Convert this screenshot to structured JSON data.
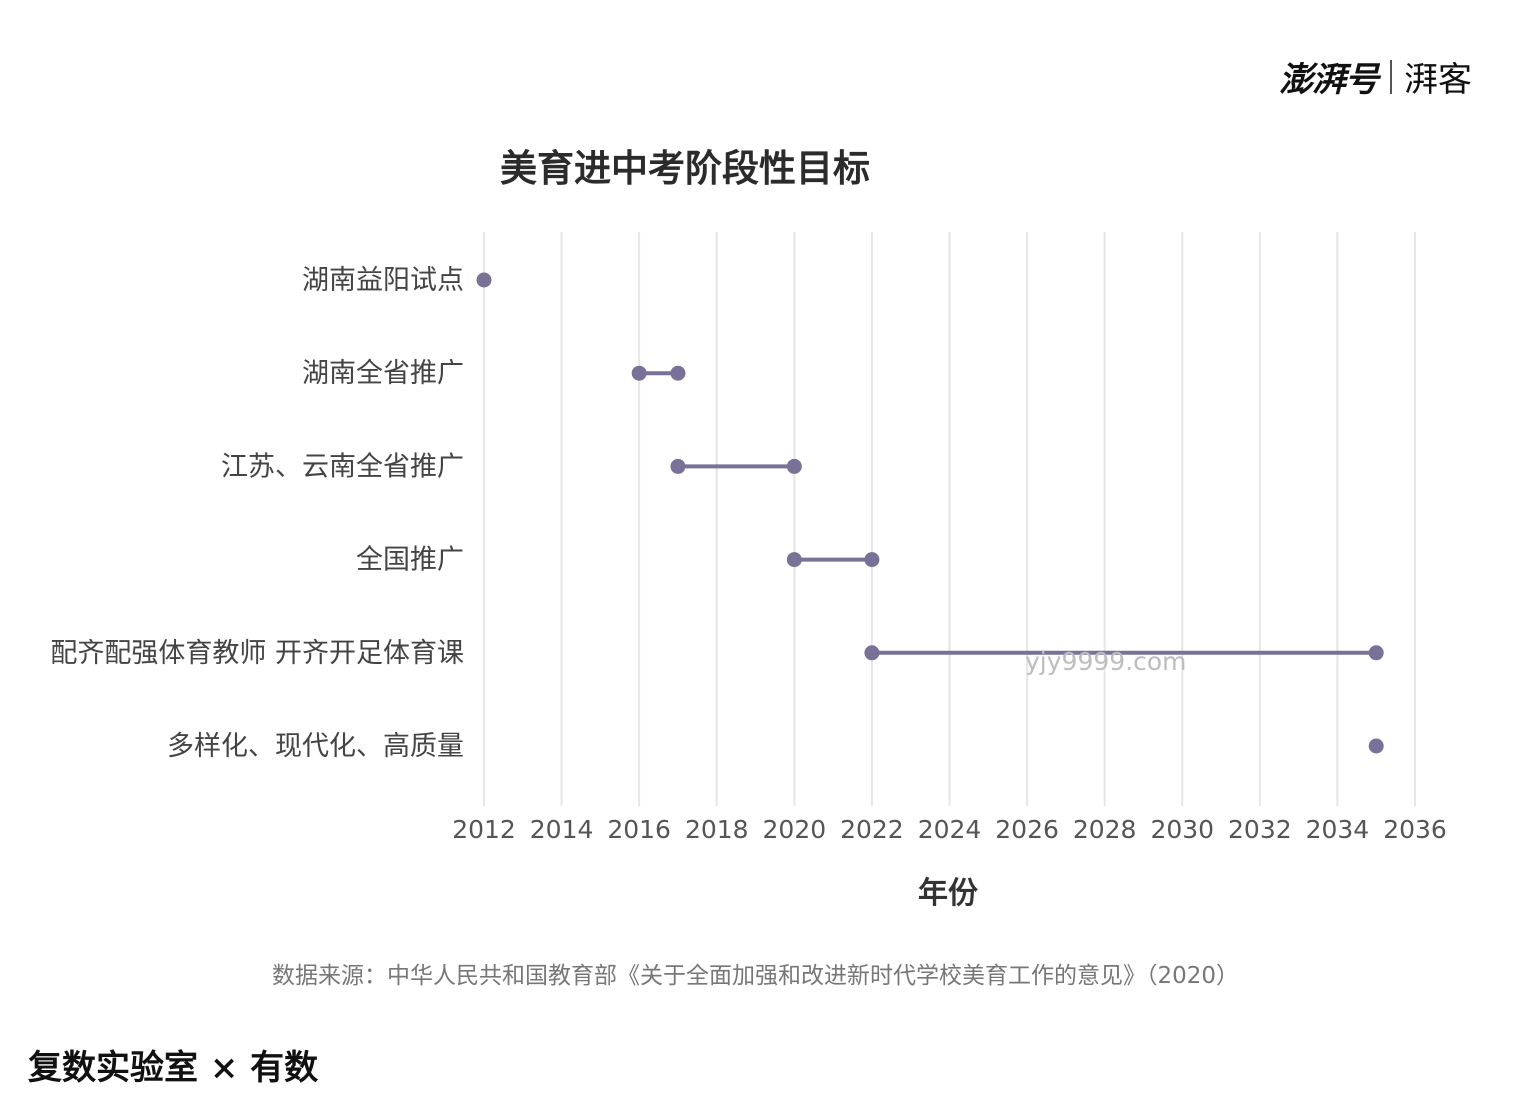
{
  "brand": {
    "logo_main": "澎湃号",
    "logo_sub": "湃客"
  },
  "footer": "复数实验室 × 有数",
  "source": "数据来源：中华人民共和国教育部《关于全面加强和改进新时代学校美育工作的意见》（2020）",
  "watermark": "yjy9999.com",
  "colors": {
    "series": "#7a7199",
    "grid": "#e6e6e6",
    "tick": "#555555"
  },
  "chart_data": {
    "type": "dumbbell",
    "title": "美育进中考阶段性目标",
    "xlabel": "年份",
    "ylabel": "",
    "xlim": [
      2012,
      2036
    ],
    "xticks": [
      2012,
      2014,
      2016,
      2018,
      2020,
      2022,
      2024,
      2026,
      2028,
      2030,
      2032,
      2034,
      2036
    ],
    "grid": true,
    "rows": [
      {
        "label": "湖南益阳试点",
        "start": 2012,
        "end": 2012
      },
      {
        "label": "湖南全省推广",
        "start": 2016,
        "end": 2017
      },
      {
        "label": "江苏、云南全省推广",
        "start": 2017,
        "end": 2020
      },
      {
        "label": "全国推广",
        "start": 2020,
        "end": 2022
      },
      {
        "label": "配齐配强体育教师 开齐开足体育课",
        "start": 2022,
        "end": 2035
      },
      {
        "label": "多样化、现代化、高质量",
        "start": 2035,
        "end": 2035
      }
    ]
  }
}
